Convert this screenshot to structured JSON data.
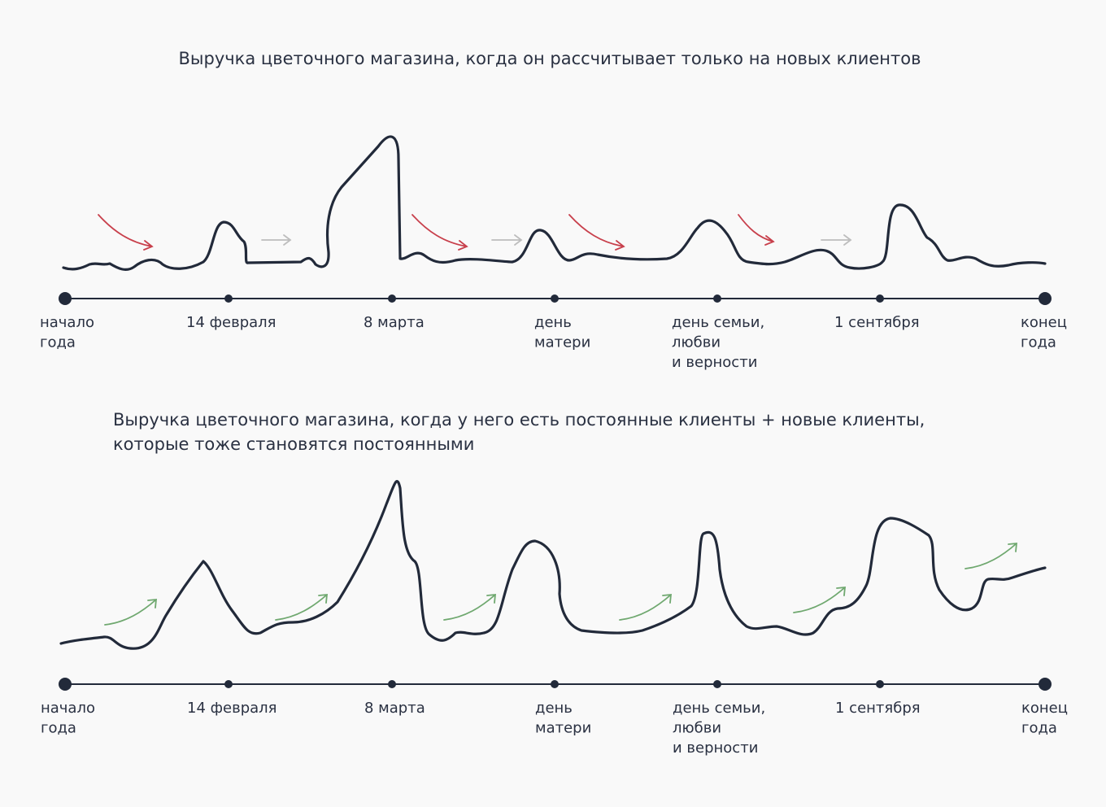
{
  "top": {
    "title": "Выручка цветочного магазина, когда он рассчитывает только на новых клиентов",
    "labels": [
      [
        "начало",
        "года"
      ],
      [
        "14 февраля"
      ],
      [
        "8 марта"
      ],
      [
        "день",
        "матери"
      ],
      [
        "день семьи,",
        "любви",
        "и верности"
      ],
      [
        "1 сентября"
      ],
      [
        "конец",
        "года"
      ]
    ]
  },
  "bottom": {
    "title": [
      "Выручка цветочного магазина, когда у него есть постоянные клиенты + новые клиенты,",
      "которые тоже становятся постоянными"
    ],
    "labels": [
      [
        "начало",
        "года"
      ],
      [
        "14 февраля"
      ],
      [
        "8 марта"
      ],
      [
        "день",
        "матери"
      ],
      [
        "день семьи,",
        "любви",
        "и верности"
      ],
      [
        "1 сентября"
      ],
      [
        "конец",
        "года"
      ]
    ]
  }
}
